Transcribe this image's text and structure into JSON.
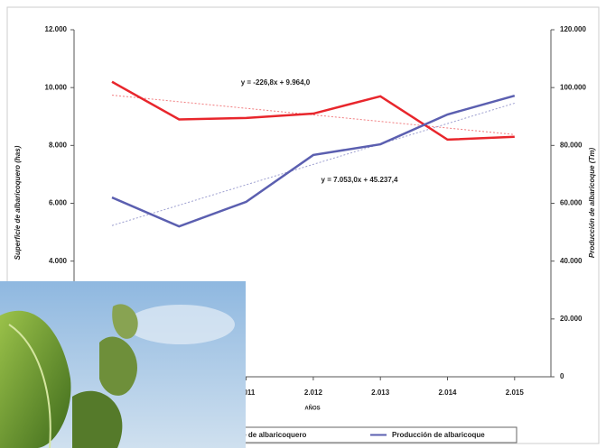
{
  "chart_data": {
    "type": "line",
    "categories": [
      null,
      null,
      "2.011",
      "2.012",
      "2.013",
      "2.014",
      "2.015"
    ],
    "x_label": "AÑOS",
    "y_label": "Superficie de albaricoquero (has)",
    "y2_label": "Producción de albaricoque (Tm)",
    "ylim": [
      0,
      12000
    ],
    "yticks": [
      {
        "value": 4000,
        "label": "4.000"
      },
      {
        "value": 6000,
        "label": "6.000"
      },
      {
        "value": 8000,
        "label": "8.000"
      },
      {
        "value": 10000,
        "label": "10.000"
      },
      {
        "value": 12000,
        "label": "12.000"
      }
    ],
    "y2lim": [
      0,
      120000
    ],
    "y2ticks": [
      0,
      {
        "value": 20000,
        "label": "20.000"
      },
      {
        "value": 40000,
        "label": "40.000"
      },
      {
        "value": 60000,
        "label": "60.000"
      },
      {
        "value": 80000,
        "label": "80.000"
      },
      {
        "value": 100000,
        "label": "100.000"
      },
      {
        "value": 120000,
        "label": "120.000"
      }
    ],
    "series": [
      {
        "name": "Superficie de albaricoquero",
        "color": "#e8262c",
        "values": [
          10200,
          8900,
          8950,
          9100,
          9700,
          8200,
          8300
        ]
      },
      {
        "name": "Producción de albaricoque",
        "color": "#5b5fb0",
        "axis": "y2",
        "values": [
          62000,
          52000,
          60500,
          76700,
          80400,
          90700,
          97200
        ]
      }
    ],
    "trendlines": [
      {
        "equation": "y = -226,8x + 9.964,0",
        "color": "#e8262c",
        "values": [
          9737.2,
          9510.4,
          9283.6,
          9056.8,
          8830,
          8603.2,
          8376.4
        ]
      },
      {
        "equation": "y = 7.053,0x + 45.237,4",
        "color": "#5b5fb0",
        "axis": "y2",
        "values": [
          52290.4,
          59343.4,
          66396.4,
          73449.4,
          80502.4,
          87555.4,
          94608.4
        ]
      }
    ],
    "legend": "bottom"
  }
}
